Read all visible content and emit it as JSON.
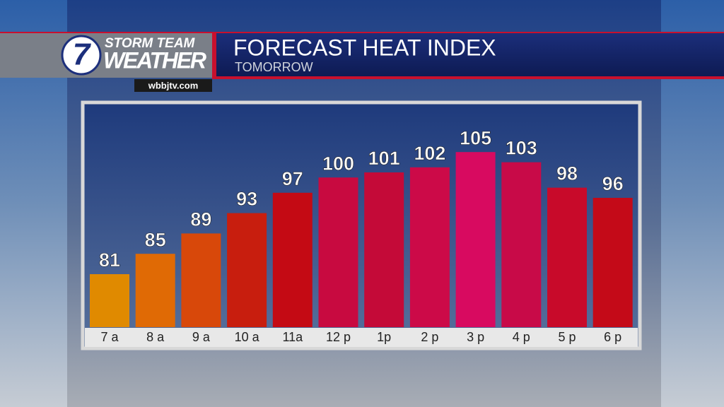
{
  "brand": {
    "logo_number": "7",
    "line1": "STORM TEAM",
    "line2": "WEATHER",
    "website": "wbbjtv.com"
  },
  "chart_data": {
    "type": "bar",
    "title": "FORECAST HEAT INDEX",
    "subtitle": "TOMORROW",
    "categories": [
      "7 a",
      "8 a",
      "9 a",
      "10 a",
      "11a",
      "12 p",
      "1p",
      "2 p",
      "3 p",
      "4 p",
      "5 p",
      "6 p"
    ],
    "values": [
      81,
      85,
      89,
      93,
      97,
      100,
      101,
      102,
      105,
      103,
      98,
      96
    ],
    "colors": [
      "#e08a00",
      "#e06a05",
      "#d8480a",
      "#c81e0e",
      "#c40a14",
      "#c80a40",
      "#c40a38",
      "#cc0a48",
      "#d80a60",
      "#c80a48",
      "#c80a2a",
      "#c40a18"
    ]
  }
}
